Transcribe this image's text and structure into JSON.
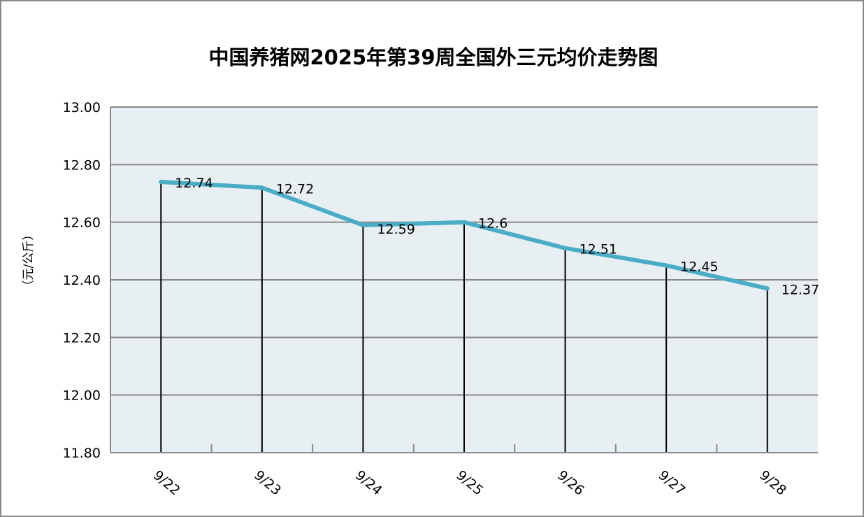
{
  "chart_data": {
    "type": "line",
    "title": "中国养猪网2025年第39周全国外三元均价走势图",
    "ylabel": "（元/公斤）",
    "xlabel": "",
    "categories": [
      "9/22",
      "9/23",
      "9/24",
      "9/25",
      "9/26",
      "9/27",
      "9/28"
    ],
    "values": [
      12.74,
      12.72,
      12.59,
      12.6,
      12.51,
      12.45,
      12.37
    ],
    "data_labels": [
      "12.74",
      "12.72",
      "12.59",
      "12.6",
      "12.51",
      "12.45",
      "12.37"
    ],
    "ylim": [
      11.8,
      13.0
    ],
    "yticks": [
      "11.80",
      "12.00",
      "12.20",
      "12.40",
      "12.60",
      "12.80",
      "13.00"
    ],
    "grid": true,
    "drop_lines": true,
    "colors": {
      "line": "#4bacc6",
      "plot_bg": "#e8eff3",
      "grid": "#888888"
    }
  }
}
